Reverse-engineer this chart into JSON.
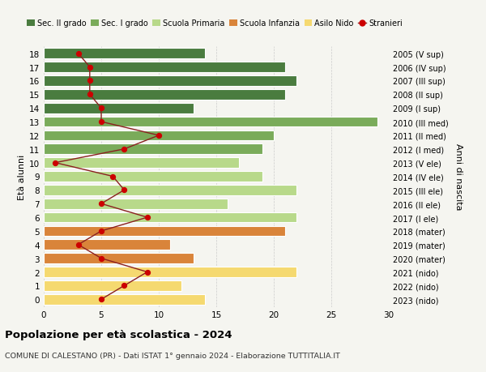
{
  "ages": [
    18,
    17,
    16,
    15,
    14,
    13,
    12,
    11,
    10,
    9,
    8,
    7,
    6,
    5,
    4,
    3,
    2,
    1,
    0
  ],
  "year_labels": [
    "2005 (V sup)",
    "2006 (IV sup)",
    "2007 (III sup)",
    "2008 (II sup)",
    "2009 (I sup)",
    "2010 (III med)",
    "2011 (II med)",
    "2012 (I med)",
    "2013 (V ele)",
    "2014 (IV ele)",
    "2015 (III ele)",
    "2016 (II ele)",
    "2017 (I ele)",
    "2018 (mater)",
    "2019 (mater)",
    "2020 (mater)",
    "2021 (nido)",
    "2022 (nido)",
    "2023 (nido)"
  ],
  "bar_values": [
    14,
    21,
    22,
    21,
    13,
    29,
    20,
    19,
    17,
    19,
    22,
    16,
    22,
    21,
    11,
    13,
    22,
    12,
    14
  ],
  "bar_colors": [
    "#4a7c3f",
    "#4a7c3f",
    "#4a7c3f",
    "#4a7c3f",
    "#4a7c3f",
    "#7aab5a",
    "#7aab5a",
    "#7aab5a",
    "#b8d98a",
    "#b8d98a",
    "#b8d98a",
    "#b8d98a",
    "#b8d98a",
    "#d9843a",
    "#d9843a",
    "#d9843a",
    "#f5d970",
    "#f5d970",
    "#f5d970"
  ],
  "stranieri_values": [
    3,
    4,
    4,
    4,
    5,
    5,
    10,
    7,
    1,
    6,
    7,
    5,
    9,
    5,
    3,
    5,
    9,
    7,
    5
  ],
  "title": "Popolazione per età scolastica - 2024",
  "subtitle": "COMUNE DI CALESTANO (PR) - Dati ISTAT 1° gennaio 2024 - Elaborazione TUTTITALIA.IT",
  "ylabel_left": "Età alunni",
  "ylabel_right": "Anni di nascita",
  "xlim": [
    0,
    30
  ],
  "xticks": [
    0,
    5,
    10,
    15,
    20,
    25,
    30
  ],
  "legend_labels": [
    "Sec. II grado",
    "Sec. I grado",
    "Scuola Primaria",
    "Scuola Infanzia",
    "Asilo Nido",
    "Stranieri"
  ],
  "legend_colors": [
    "#4a7c3f",
    "#7aab5a",
    "#b8d98a",
    "#d9843a",
    "#f5d970",
    "#cc0000"
  ],
  "stranieri_line_color": "#8b2020",
  "stranieri_dot_color": "#cc0000",
  "background_color": "#f5f5f0",
  "bar_height": 0.75
}
